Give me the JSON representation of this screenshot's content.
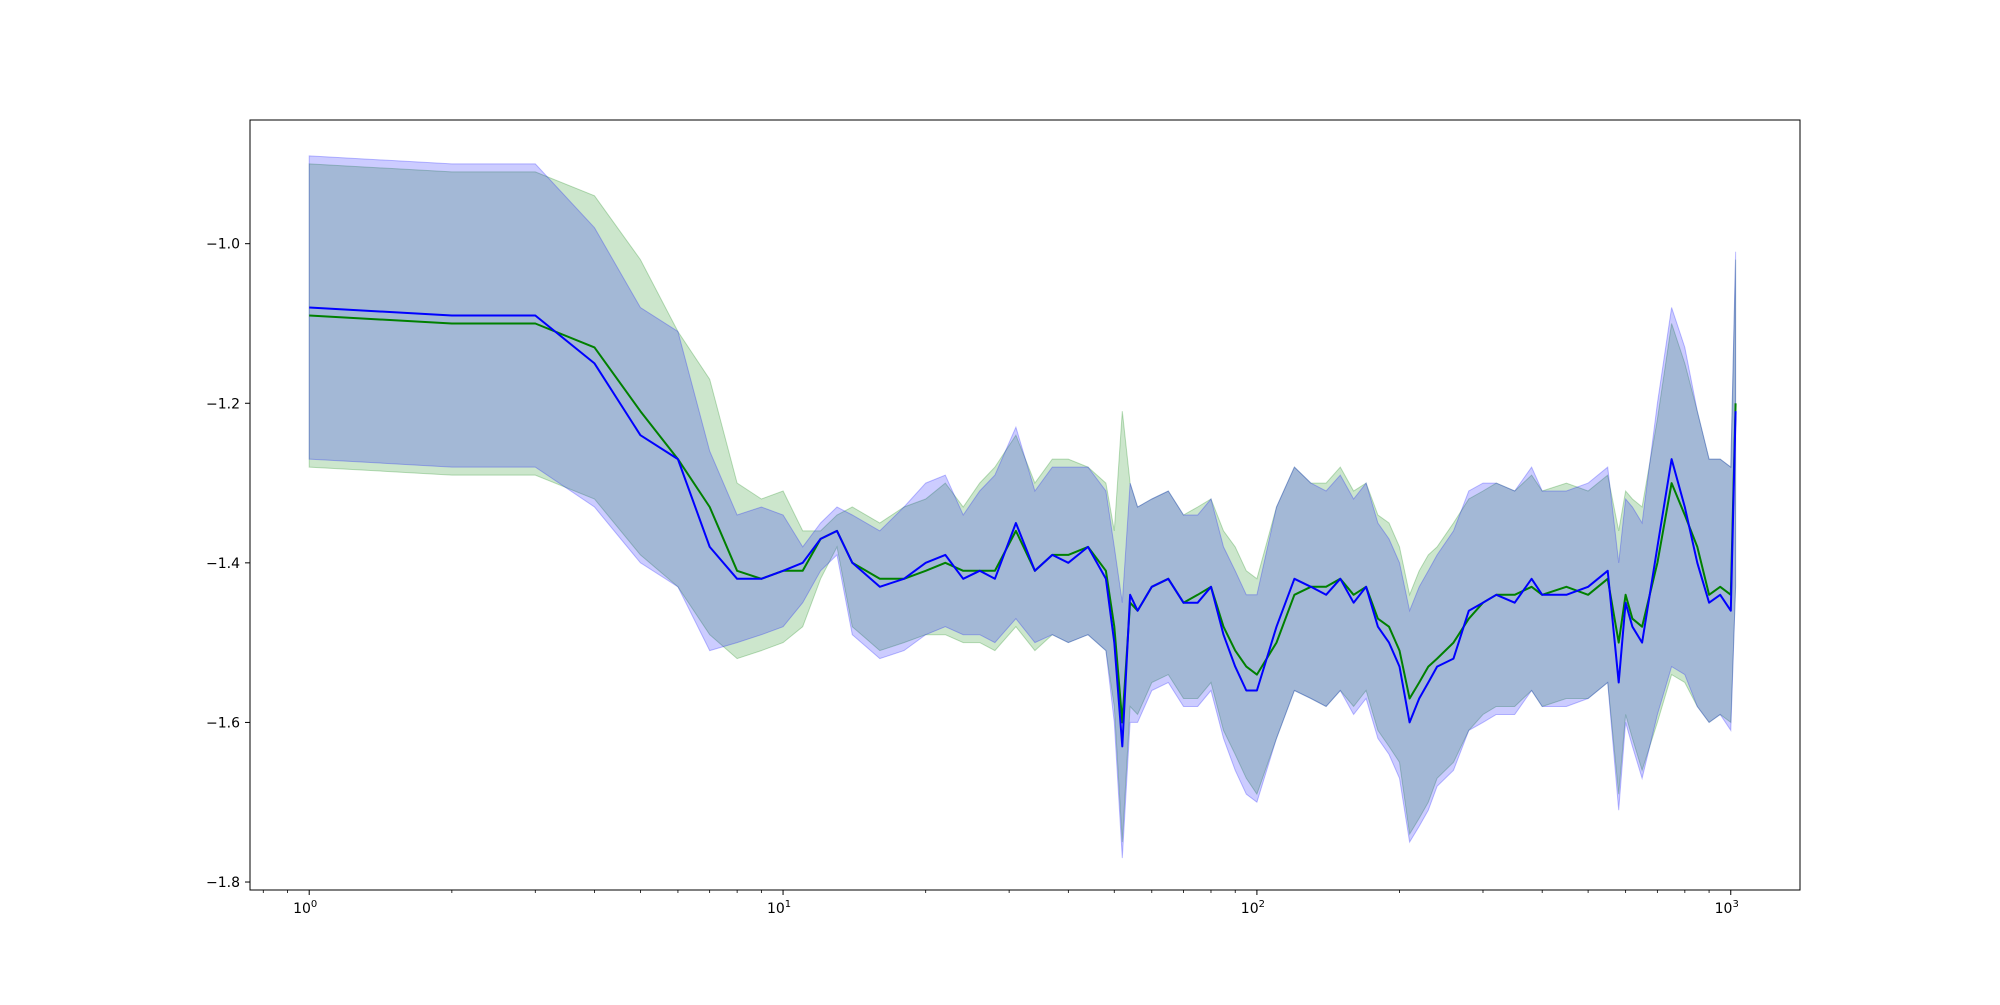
{
  "chart_data": {
    "type": "line",
    "x_scale": "log",
    "xlim": [
      0.75,
      1400
    ],
    "ylim": [
      -1.81,
      -0.845
    ],
    "x_ticks": [
      {
        "value": 1,
        "base": "10",
        "exp": "0"
      },
      {
        "value": 10,
        "base": "10",
        "exp": "1"
      },
      {
        "value": 100,
        "base": "10",
        "exp": "2"
      },
      {
        "value": 1000,
        "base": "10",
        "exp": "3"
      }
    ],
    "y_ticks": [
      {
        "value": -1.0,
        "label": "−1.0"
      },
      {
        "value": -1.2,
        "label": "−1.2"
      },
      {
        "value": -1.4,
        "label": "−1.4"
      },
      {
        "value": -1.6,
        "label": "−1.6"
      },
      {
        "value": -1.8,
        "label": "−1.8"
      }
    ],
    "grid": false,
    "colors": {
      "green_line": "#008000",
      "blue_line": "#0000ff",
      "green_band": "#008000",
      "blue_band": "#0000ff"
    },
    "series": [
      {
        "color": "#008000",
        "x": [
          1,
          2,
          3,
          4,
          5,
          6,
          7,
          8,
          9,
          10,
          11,
          12,
          13,
          14,
          16,
          18,
          20,
          22,
          24,
          26,
          28,
          31,
          34,
          37,
          40,
          44,
          48,
          50,
          52,
          54,
          56,
          60,
          65,
          70,
          75,
          80,
          85,
          90,
          95,
          100,
          110,
          120,
          130,
          140,
          150,
          160,
          170,
          180,
          190,
          200,
          210,
          220,
          230,
          240,
          260,
          280,
          300,
          320,
          350,
          380,
          400,
          450,
          500,
          550,
          580,
          600,
          620,
          650,
          700,
          750,
          800,
          850,
          900,
          950,
          1000,
          1024
        ],
        "y": [
          -1.09,
          -1.1,
          -1.1,
          -1.13,
          -1.21,
          -1.27,
          -1.33,
          -1.41,
          -1.42,
          -1.41,
          -1.41,
          -1.37,
          -1.36,
          -1.4,
          -1.42,
          -1.42,
          -1.41,
          -1.4,
          -1.41,
          -1.41,
          -1.41,
          -1.36,
          -1.41,
          -1.39,
          -1.39,
          -1.38,
          -1.41,
          -1.48,
          -1.6,
          -1.45,
          -1.46,
          -1.43,
          -1.42,
          -1.45,
          -1.44,
          -1.43,
          -1.48,
          -1.51,
          -1.53,
          -1.54,
          -1.5,
          -1.44,
          -1.43,
          -1.43,
          -1.42,
          -1.44,
          -1.43,
          -1.47,
          -1.48,
          -1.51,
          -1.57,
          -1.55,
          -1.53,
          -1.52,
          -1.5,
          -1.47,
          -1.45,
          -1.44,
          -1.44,
          -1.43,
          -1.44,
          -1.43,
          -1.44,
          -1.42,
          -1.5,
          -1.44,
          -1.47,
          -1.48,
          -1.4,
          -1.3,
          -1.34,
          -1.38,
          -1.44,
          -1.43,
          -1.44,
          -1.2
        ]
      },
      {
        "color": "#0000ff",
        "x": [
          1,
          2,
          3,
          4,
          5,
          6,
          7,
          8,
          9,
          10,
          11,
          12,
          13,
          14,
          16,
          18,
          20,
          22,
          24,
          26,
          28,
          31,
          34,
          37,
          40,
          44,
          48,
          50,
          52,
          54,
          56,
          60,
          65,
          70,
          75,
          80,
          85,
          90,
          95,
          100,
          110,
          120,
          130,
          140,
          150,
          160,
          170,
          180,
          190,
          200,
          210,
          220,
          230,
          240,
          260,
          280,
          300,
          320,
          350,
          380,
          400,
          450,
          500,
          550,
          580,
          600,
          620,
          650,
          700,
          750,
          800,
          850,
          900,
          950,
          1000,
          1024
        ],
        "y": [
          -1.08,
          -1.09,
          -1.09,
          -1.15,
          -1.24,
          -1.27,
          -1.38,
          -1.42,
          -1.42,
          -1.41,
          -1.4,
          -1.37,
          -1.36,
          -1.4,
          -1.43,
          -1.42,
          -1.4,
          -1.39,
          -1.42,
          -1.41,
          -1.42,
          -1.35,
          -1.41,
          -1.39,
          -1.4,
          -1.38,
          -1.42,
          -1.5,
          -1.63,
          -1.44,
          -1.46,
          -1.43,
          -1.42,
          -1.45,
          -1.45,
          -1.43,
          -1.49,
          -1.53,
          -1.56,
          -1.56,
          -1.48,
          -1.42,
          -1.43,
          -1.44,
          -1.42,
          -1.45,
          -1.43,
          -1.48,
          -1.5,
          -1.53,
          -1.6,
          -1.57,
          -1.55,
          -1.53,
          -1.52,
          -1.46,
          -1.45,
          -1.44,
          -1.45,
          -1.42,
          -1.44,
          -1.44,
          -1.43,
          -1.41,
          -1.55,
          -1.45,
          -1.48,
          -1.5,
          -1.38,
          -1.27,
          -1.33,
          -1.4,
          -1.45,
          -1.44,
          -1.46,
          -1.21
        ]
      }
    ],
    "bands": [
      {
        "color": "#008000",
        "x": [
          1,
          2,
          3,
          4,
          5,
          6,
          7,
          8,
          9,
          10,
          11,
          12,
          13,
          14,
          16,
          18,
          20,
          22,
          24,
          26,
          28,
          31,
          34,
          37,
          40,
          44,
          48,
          50,
          52,
          54,
          56,
          60,
          65,
          70,
          75,
          80,
          85,
          90,
          95,
          100,
          110,
          120,
          130,
          140,
          150,
          160,
          170,
          180,
          190,
          200,
          210,
          220,
          230,
          240,
          260,
          280,
          300,
          320,
          350,
          380,
          400,
          450,
          500,
          550,
          580,
          600,
          620,
          650,
          700,
          750,
          800,
          850,
          900,
          950,
          1000,
          1024
        ],
        "upper": [
          -0.9,
          -0.91,
          -0.91,
          -0.94,
          -1.02,
          -1.11,
          -1.17,
          -1.3,
          -1.32,
          -1.31,
          -1.36,
          -1.36,
          -1.34,
          -1.33,
          -1.35,
          -1.33,
          -1.32,
          -1.3,
          -1.33,
          -1.3,
          -1.28,
          -1.24,
          -1.3,
          -1.27,
          -1.27,
          -1.28,
          -1.3,
          -1.36,
          -1.21,
          -1.3,
          -1.33,
          -1.32,
          -1.31,
          -1.34,
          -1.33,
          -1.32,
          -1.36,
          -1.38,
          -1.41,
          -1.42,
          -1.33,
          -1.28,
          -1.3,
          -1.3,
          -1.28,
          -1.31,
          -1.3,
          -1.34,
          -1.35,
          -1.38,
          -1.44,
          -1.41,
          -1.39,
          -1.38,
          -1.35,
          -1.32,
          -1.31,
          -1.3,
          -1.31,
          -1.29,
          -1.31,
          -1.3,
          -1.31,
          -1.29,
          -1.36,
          -1.31,
          -1.32,
          -1.33,
          -1.22,
          -1.1,
          -1.15,
          -1.21,
          -1.27,
          -1.27,
          -1.28,
          -1.02
        ],
        "lower": [
          -1.28,
          -1.29,
          -1.29,
          -1.32,
          -1.39,
          -1.43,
          -1.49,
          -1.52,
          -1.51,
          -1.5,
          -1.48,
          -1.42,
          -1.38,
          -1.48,
          -1.51,
          -1.5,
          -1.49,
          -1.49,
          -1.5,
          -1.5,
          -1.51,
          -1.48,
          -1.51,
          -1.49,
          -1.5,
          -1.49,
          -1.51,
          -1.58,
          -1.75,
          -1.58,
          -1.59,
          -1.55,
          -1.54,
          -1.57,
          -1.57,
          -1.55,
          -1.61,
          -1.64,
          -1.67,
          -1.69,
          -1.62,
          -1.56,
          -1.57,
          -1.58,
          -1.56,
          -1.58,
          -1.56,
          -1.61,
          -1.63,
          -1.65,
          -1.74,
          -1.72,
          -1.7,
          -1.67,
          -1.65,
          -1.61,
          -1.59,
          -1.58,
          -1.58,
          -1.56,
          -1.58,
          -1.57,
          -1.57,
          -1.55,
          -1.69,
          -1.59,
          -1.62,
          -1.66,
          -1.6,
          -1.54,
          -1.55,
          -1.58,
          -1.6,
          -1.59,
          -1.6,
          -1.43
        ]
      },
      {
        "color": "#0000ff",
        "x": [
          1,
          2,
          3,
          4,
          5,
          6,
          7,
          8,
          9,
          10,
          11,
          12,
          13,
          14,
          16,
          18,
          20,
          22,
          24,
          26,
          28,
          31,
          34,
          37,
          40,
          44,
          48,
          50,
          52,
          54,
          56,
          60,
          65,
          70,
          75,
          80,
          85,
          90,
          95,
          100,
          110,
          120,
          130,
          140,
          150,
          160,
          170,
          180,
          190,
          200,
          210,
          220,
          230,
          240,
          260,
          280,
          300,
          320,
          350,
          380,
          400,
          450,
          500,
          550,
          580,
          600,
          620,
          650,
          700,
          750,
          800,
          850,
          900,
          950,
          1000,
          1024
        ],
        "upper": [
          -0.89,
          -0.9,
          -0.9,
          -0.98,
          -1.08,
          -1.11,
          -1.26,
          -1.34,
          -1.33,
          -1.34,
          -1.38,
          -1.35,
          -1.33,
          -1.34,
          -1.36,
          -1.33,
          -1.3,
          -1.29,
          -1.34,
          -1.31,
          -1.29,
          -1.23,
          -1.31,
          -1.28,
          -1.28,
          -1.28,
          -1.31,
          -1.38,
          -1.45,
          -1.3,
          -1.33,
          -1.32,
          -1.31,
          -1.34,
          -1.34,
          -1.32,
          -1.38,
          -1.41,
          -1.44,
          -1.44,
          -1.33,
          -1.28,
          -1.3,
          -1.31,
          -1.29,
          -1.32,
          -1.3,
          -1.35,
          -1.37,
          -1.4,
          -1.46,
          -1.43,
          -1.41,
          -1.39,
          -1.36,
          -1.31,
          -1.3,
          -1.3,
          -1.31,
          -1.28,
          -1.31,
          -1.31,
          -1.3,
          -1.28,
          -1.4,
          -1.32,
          -1.33,
          -1.35,
          -1.2,
          -1.08,
          -1.13,
          -1.21,
          -1.27,
          -1.27,
          -1.28,
          -1.01
        ],
        "lower": [
          -1.27,
          -1.28,
          -1.28,
          -1.33,
          -1.4,
          -1.43,
          -1.51,
          -1.5,
          -1.49,
          -1.48,
          -1.45,
          -1.41,
          -1.39,
          -1.49,
          -1.52,
          -1.51,
          -1.49,
          -1.48,
          -1.49,
          -1.49,
          -1.5,
          -1.47,
          -1.5,
          -1.49,
          -1.5,
          -1.49,
          -1.51,
          -1.6,
          -1.77,
          -1.6,
          -1.6,
          -1.56,
          -1.55,
          -1.58,
          -1.58,
          -1.56,
          -1.62,
          -1.66,
          -1.69,
          -1.7,
          -1.62,
          -1.56,
          -1.57,
          -1.58,
          -1.56,
          -1.59,
          -1.57,
          -1.62,
          -1.64,
          -1.67,
          -1.75,
          -1.73,
          -1.71,
          -1.68,
          -1.66,
          -1.61,
          -1.6,
          -1.59,
          -1.59,
          -1.56,
          -1.58,
          -1.58,
          -1.57,
          -1.55,
          -1.71,
          -1.6,
          -1.63,
          -1.67,
          -1.59,
          -1.53,
          -1.54,
          -1.58,
          -1.6,
          -1.59,
          -1.61,
          -1.43
        ]
      }
    ]
  }
}
